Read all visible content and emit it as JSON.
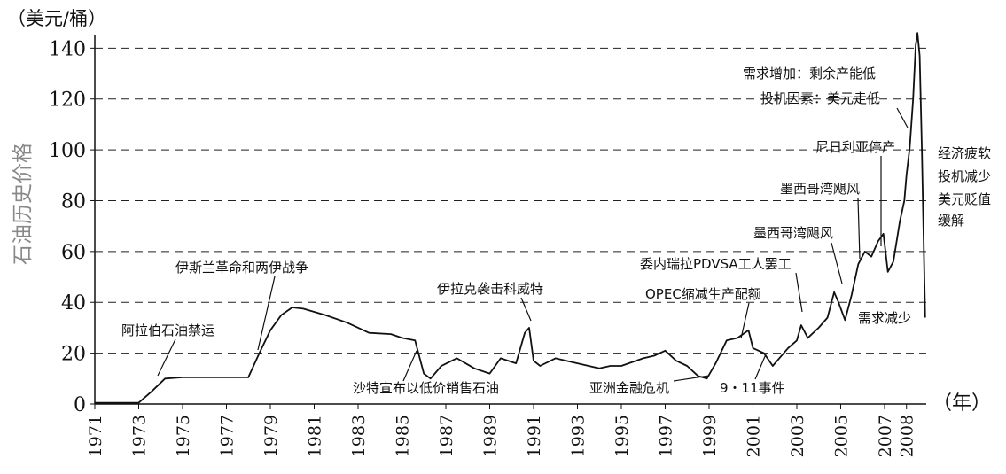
{
  "chart_data": {
    "type": "line",
    "unit_label": "（美元/桶）",
    "ylabel": "石油历史价格",
    "xlabel": "（年）",
    "ylim": [
      0,
      145
    ],
    "yticks": [
      0,
      20,
      40,
      60,
      80,
      100,
      120,
      140
    ],
    "xlim": [
      1971,
      2008.9
    ],
    "xticks": [
      "1971",
      "1973",
      "1975",
      "1977",
      "1979",
      "1981",
      "1983",
      "1985",
      "1987",
      "1989",
      "1991",
      "1993",
      "1995",
      "1997",
      "1999",
      "2001",
      "2003",
      "2005",
      "2007",
      "2008"
    ],
    "grid": "horizontal-dashed",
    "series": [
      {
        "x": [
          1971.0,
          1973.0,
          1973.6,
          1974.2,
          1975.0,
          1976.5,
          1978.0,
          1978.5,
          1979.0,
          1979.5,
          1980.0,
          1980.5,
          1981.5,
          1982.5,
          1983.5,
          1984.5,
          1985.0,
          1985.6,
          1986.0,
          1986.3,
          1986.8,
          1987.5,
          1988.3,
          1989.0,
          1989.5,
          1990.2,
          1990.6,
          1990.8,
          1991.0,
          1991.3,
          1992.0,
          1993.0,
          1994.0,
          1994.5,
          1995.0,
          1996.0,
          1996.5,
          1997.0,
          1997.5,
          1998.0,
          1998.5,
          1998.9,
          1999.3,
          1999.8,
          2000.3,
          2000.8,
          2001.0,
          2001.5,
          2001.9,
          2002.2,
          2002.6,
          2003.0,
          2003.2,
          2003.5,
          2004.0,
          2004.4,
          2004.7,
          2004.9,
          2005.2,
          2005.5,
          2005.8,
          2006.1,
          2006.4,
          2006.7,
          2006.95,
          2007.15,
          2007.4,
          2007.7,
          2007.9,
          2008.0,
          2008.15,
          2008.3,
          2008.42,
          2008.5,
          2008.6,
          2008.7,
          2008.85
        ],
        "y": [
          0.5,
          0.5,
          5,
          10,
          10.5,
          10.5,
          10.5,
          20,
          29,
          35,
          38,
          37.5,
          35,
          32,
          28,
          27.5,
          26,
          25,
          12,
          10,
          15,
          18,
          14,
          12,
          18,
          16,
          28,
          30,
          17,
          15,
          18,
          16,
          14,
          15,
          15,
          18,
          19,
          21,
          17,
          15,
          11,
          10,
          16,
          25,
          26,
          29,
          22,
          20,
          15,
          18,
          22,
          25,
          31,
          26,
          30,
          34,
          44,
          40,
          33,
          43,
          55,
          60,
          58,
          64,
          67,
          52,
          56,
          72,
          80,
          90,
          101,
          120,
          141,
          146,
          137,
          100,
          34
        ]
      }
    ],
    "annotations": [
      "阿拉伯石油禁运",
      "伊斯兰革命和两伊战争",
      "沙特宣布以低价销售石油",
      "伊拉克袭击科威特",
      "亚洲金融危机",
      "9・11事件",
      "OPEC缩减生产配额",
      "委内瑞拉PDVSA工人罢工",
      "墨西哥湾飓风",
      "墨西哥湾飓风",
      "尼日利亚停产",
      "投机因素：美元走低",
      "需求增加：剩余产能低",
      "经济疲软",
      "投机减少",
      "美元贬值",
      "缓解",
      "需求减少"
    ]
  }
}
